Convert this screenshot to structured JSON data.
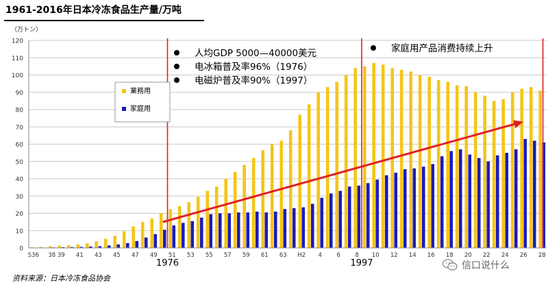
{
  "title": "1961-2016年日本冷冻食品生产量/万吨",
  "source": "资料来源：日本冷冻食品协会",
  "watermark": "信口说什么",
  "chart_data": {
    "type": "bar",
    "y_unit": "（万トン）",
    "ylim": [
      0,
      120
    ],
    "yticks": [
      0,
      10,
      20,
      30,
      40,
      50,
      60,
      70,
      80,
      90,
      100,
      110,
      120
    ],
    "grid": true,
    "categories": [
      "S36",
      "S37",
      "38",
      "39",
      "40",
      "41",
      "42",
      "43",
      "44",
      "45",
      "46",
      "47",
      "48",
      "49",
      "50",
      "51",
      "52",
      "53",
      "54",
      "55",
      "56",
      "57",
      "58",
      "59",
      "60",
      "61",
      "62",
      "63",
      "H1",
      "H2",
      "3",
      "4",
      "5",
      "6",
      "7",
      "8",
      "9",
      "10",
      "11",
      "12",
      "13",
      "14",
      "15",
      "16",
      "17",
      "18",
      "19",
      "20",
      "21",
      "22",
      "23",
      "24",
      "25",
      "26",
      "27",
      "28"
    ],
    "xtick_labels": [
      "S36",
      "",
      "38",
      "39",
      "",
      "41",
      "",
      "43",
      "",
      "45",
      "",
      "47",
      "",
      "49",
      "",
      "51",
      "",
      "53",
      "",
      "55",
      "",
      "57",
      "",
      "59",
      "",
      "61",
      "",
      "63",
      "",
      "H2",
      "",
      "4",
      "",
      "6",
      "",
      "8",
      "",
      "10",
      "",
      "12",
      "",
      "14",
      "",
      "16",
      "",
      "18",
      "",
      "20",
      "",
      "22",
      "",
      "24",
      "",
      "26",
      "",
      "28"
    ],
    "series": [
      {
        "name": "業務用",
        "color": "#F5C518",
        "values": [
          0.4,
          0.6,
          1.0,
          1.3,
          1.5,
          2.0,
          2.7,
          3.9,
          5.3,
          7.0,
          9.6,
          12.5,
          15.0,
          17.0,
          20.0,
          22.4,
          24.2,
          26.5,
          29.5,
          33.0,
          35.5,
          40.0,
          44.0,
          48.0,
          52.0,
          56.5,
          60.0,
          62.0,
          68.0,
          77.0,
          83.0,
          90.0,
          93.0,
          96.0,
          100.0,
          104.0,
          105.0,
          107.0,
          106.0,
          104.0,
          103.0,
          102.0,
          100.0,
          99.0,
          97.0,
          96.0,
          94.0,
          93.5,
          90.0,
          88.0,
          85.0,
          86.0,
          90.0,
          92.0,
          93.0,
          91.0
        ]
      },
      {
        "name": "家庭用",
        "color": "#1C1CB8",
        "values": [
          0.1,
          0.2,
          0.3,
          0.4,
          0.5,
          0.6,
          0.8,
          1.0,
          1.4,
          2.0,
          2.8,
          4.0,
          6.0,
          8.0,
          10.5,
          13.0,
          14.5,
          15.5,
          17.5,
          19.5,
          20.0,
          20.0,
          20.5,
          20.5,
          21.0,
          20.5,
          21.0,
          22.5,
          23.0,
          23.5,
          25.5,
          29.0,
          31.5,
          33.0,
          35.5,
          36.0,
          37.5,
          39.5,
          42.0,
          43.5,
          45.5,
          46.0,
          47.0,
          48.5,
          53.0,
          56.0,
          57.0,
          54.0,
          52.0,
          50.0,
          53.5,
          55.0,
          57.0,
          63.0,
          62.0,
          61.0
        ]
      }
    ],
    "legend": {
      "position": "left",
      "entries": [
        "業務用",
        "家庭用"
      ]
    },
    "vlines": [
      {
        "at_index": 15,
        "label": "1976"
      },
      {
        "at_index": 36,
        "label": "1997"
      },
      {
        "at_index": 55,
        "label": ""
      }
    ],
    "trend_arrow": {
      "from": {
        "index": 14,
        "value": 15
      },
      "to": {
        "index": 53,
        "value": 73
      }
    },
    "annotations": [
      {
        "panel": "left",
        "lines": [
          "人均GDP 5000—40000美元",
          "电冰箱普及率96%（1976）",
          "电磁炉普及率90%（1997）"
        ]
      },
      {
        "panel": "right",
        "lines": [
          "家庭用产品消费持续上升"
        ]
      }
    ]
  }
}
